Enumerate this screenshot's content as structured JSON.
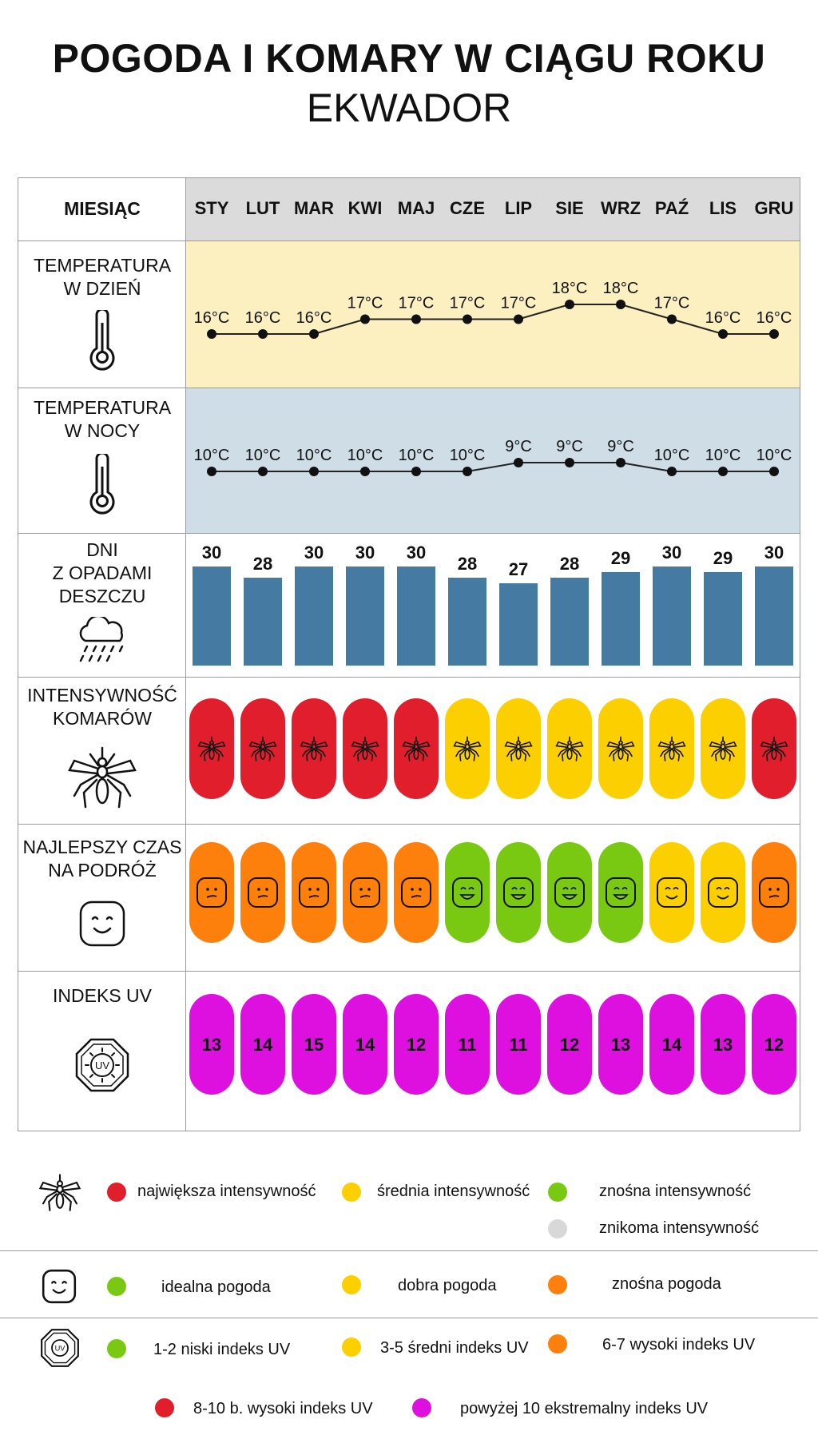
{
  "title": "POGODA I KOMARY W CIĄGU ROKU",
  "subtitle": "EKWADOR",
  "header": {
    "label": "MIESIĄC",
    "months": [
      "STY",
      "LUT",
      "MAR",
      "KWI",
      "MAJ",
      "CZE",
      "LIP",
      "SIE",
      "WRZ",
      "PAŹ",
      "LIS",
      "GRU"
    ]
  },
  "rows": {
    "day_temp": "TEMPERATURA\nW DZIEŃ",
    "night_temp": "TEMPERATURA\nW NOCY",
    "rain": "DNI\nZ OPADAMI\nDESZCZU",
    "mosquito": "INTENSYWNOŚĆ\nKOMARÓW",
    "travel": "NAJLEPSZY CZAS\nNA PODRÓŻ",
    "uv": "INDEKS UV"
  },
  "colors": {
    "red": "#e01e2c",
    "yellow": "#fcd000",
    "green": "#79c913",
    "orange": "#fd7f0c",
    "gray": "#d8d8d8",
    "magenta": "#de10e0",
    "rain_bar": "#457aa3",
    "day_bg": "#fcf0c0",
    "night_bg": "#cedde6",
    "header_bg": "#dbdbdb"
  },
  "chart_data": {
    "type": "table",
    "categories": [
      "STY",
      "LUT",
      "MAR",
      "KWI",
      "MAJ",
      "CZE",
      "LIP",
      "SIE",
      "WRZ",
      "PAŹ",
      "LIS",
      "GRU"
    ],
    "day_temperature": [
      16,
      16,
      16,
      17,
      17,
      17,
      17,
      18,
      18,
      17,
      16,
      16
    ],
    "night_temperature": [
      10,
      10,
      10,
      10,
      10,
      10,
      9,
      9,
      9,
      10,
      10,
      10
    ],
    "temp_unit": "°C",
    "rain_days": [
      30,
      28,
      30,
      30,
      30,
      28,
      27,
      28,
      29,
      30,
      29,
      30
    ],
    "mosquito_intensity": [
      "red",
      "red",
      "red",
      "red",
      "red",
      "yellow",
      "yellow",
      "yellow",
      "yellow",
      "yellow",
      "yellow",
      "red"
    ],
    "travel_weather": [
      "orange",
      "orange",
      "orange",
      "orange",
      "orange",
      "green",
      "green",
      "green",
      "green",
      "yellow",
      "yellow",
      "orange"
    ],
    "uv_index": [
      13,
      14,
      15,
      14,
      12,
      11,
      11,
      12,
      13,
      14,
      13,
      12
    ]
  },
  "legend": {
    "mosquito": [
      "największa intensywność",
      "średnia intensywność",
      "znośna intensywność",
      "znikoma intensywność"
    ],
    "travel": [
      "idealna pogoda",
      "dobra pogoda",
      "znośna pogoda"
    ],
    "uv": [
      "1-2 niski indeks UV",
      "3-5 średni indeks UV",
      "6-7 wysoki indeks UV",
      "8-10 b. wysoki indeks UV",
      "powyżej 10 ekstremalny indeks UV"
    ]
  },
  "icons": [
    "thermometer-icon",
    "rain-cloud-icon",
    "mosquito-icon",
    "smiley-face-icon",
    "uv-sun-icon"
  ]
}
